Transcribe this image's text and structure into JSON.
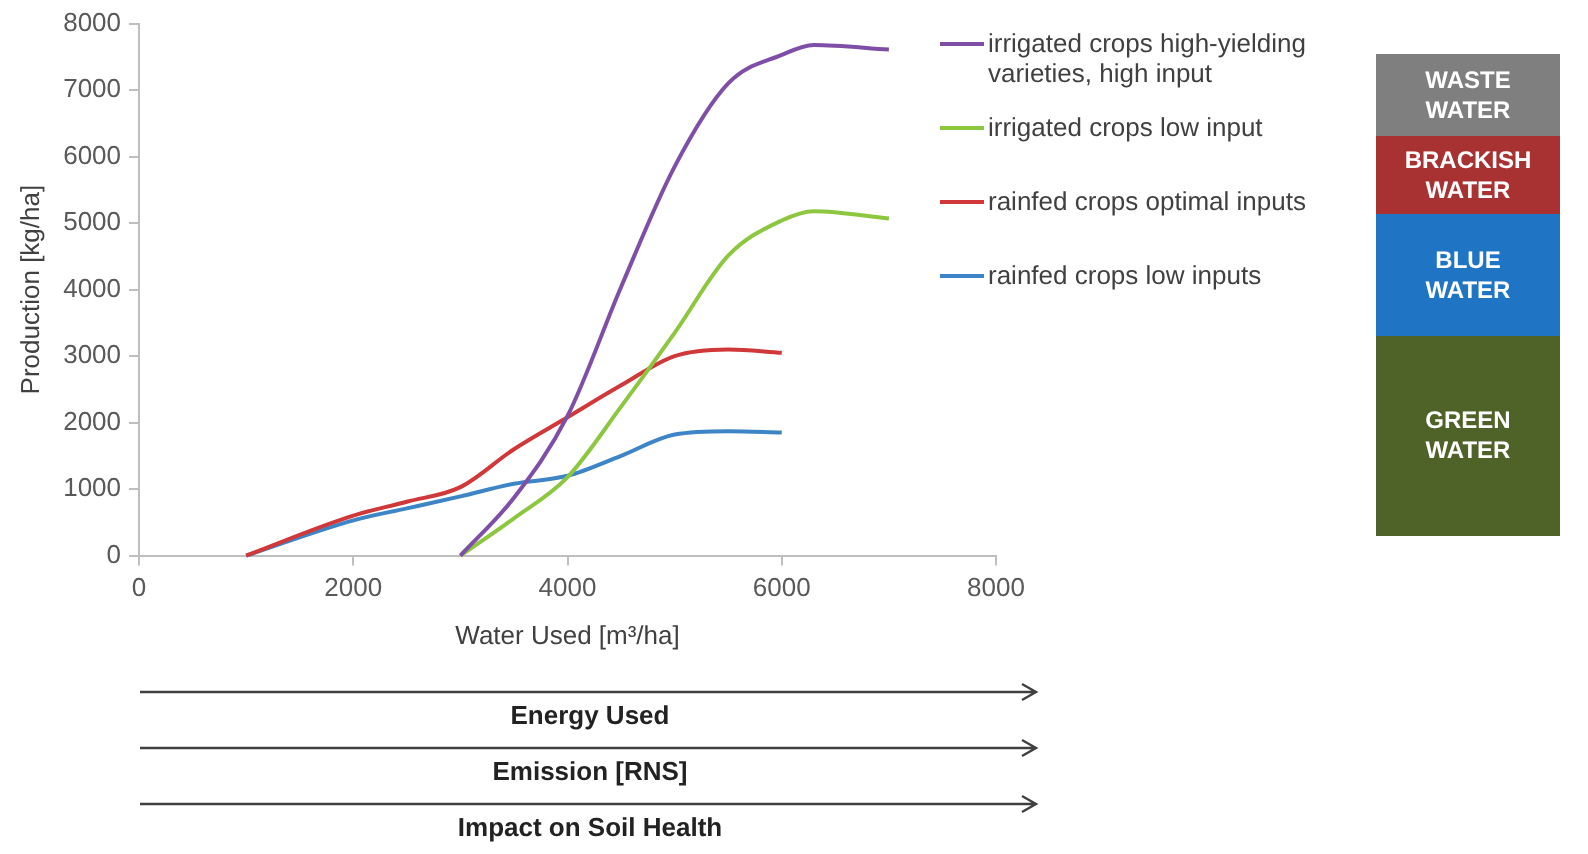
{
  "chart_data": {
    "type": "line",
    "xlabel": "Water Used [m³/ha]",
    "ylabel": "Production [kg/ha]",
    "xlim": [
      0,
      8000
    ],
    "xticks": [
      0,
      2000,
      4000,
      6000,
      8000
    ],
    "ylim": [
      0,
      8000
    ],
    "yticks": [
      0,
      1000,
      2000,
      3000,
      4000,
      5000,
      6000,
      7000,
      8000
    ],
    "grid": false,
    "legend": "right",
    "series": [
      {
        "name": "irrigated crops high-yielding varieties, high input",
        "color": "#7f4fa8",
        "x": [
          3000,
          3500,
          4000,
          4500,
          5000,
          5500,
          6000,
          6300,
          7000
        ],
        "values": [
          0,
          870,
          2100,
          4040,
          5850,
          7100,
          7530,
          7680,
          7610
        ]
      },
      {
        "name": "irrigated crops low input",
        "color": "#8dc63f",
        "x": [
          3000,
          3500,
          4000,
          4500,
          5000,
          5500,
          6000,
          6300,
          7000
        ],
        "values": [
          0,
          560,
          1180,
          2240,
          3350,
          4510,
          5040,
          5180,
          5070
        ]
      },
      {
        "name": "rainfed crops optimal inputs",
        "color": "#d0383a",
        "x": [
          1000,
          2000,
          2500,
          3000,
          3500,
          4000,
          4500,
          5000,
          5500,
          6000
        ],
        "values": [
          0,
          600,
          810,
          1030,
          1600,
          2080,
          2560,
          3000,
          3100,
          3050
        ]
      },
      {
        "name": "rainfed crops low inputs",
        "color": "#3d85c6",
        "x": [
          1000,
          2000,
          2500,
          3000,
          3500,
          4000,
          4500,
          5000,
          5500,
          6000
        ],
        "values": [
          0,
          530,
          710,
          890,
          1080,
          1200,
          1500,
          1820,
          1870,
          1850
        ]
      }
    ],
    "annotations": [
      "WASTE WATER",
      "BRACKISH WATER",
      "BLUE WATER",
      "GREEN WATER",
      "Energy Used",
      "Emission [RNS]",
      "Impact on Soil Health"
    ]
  }
}
